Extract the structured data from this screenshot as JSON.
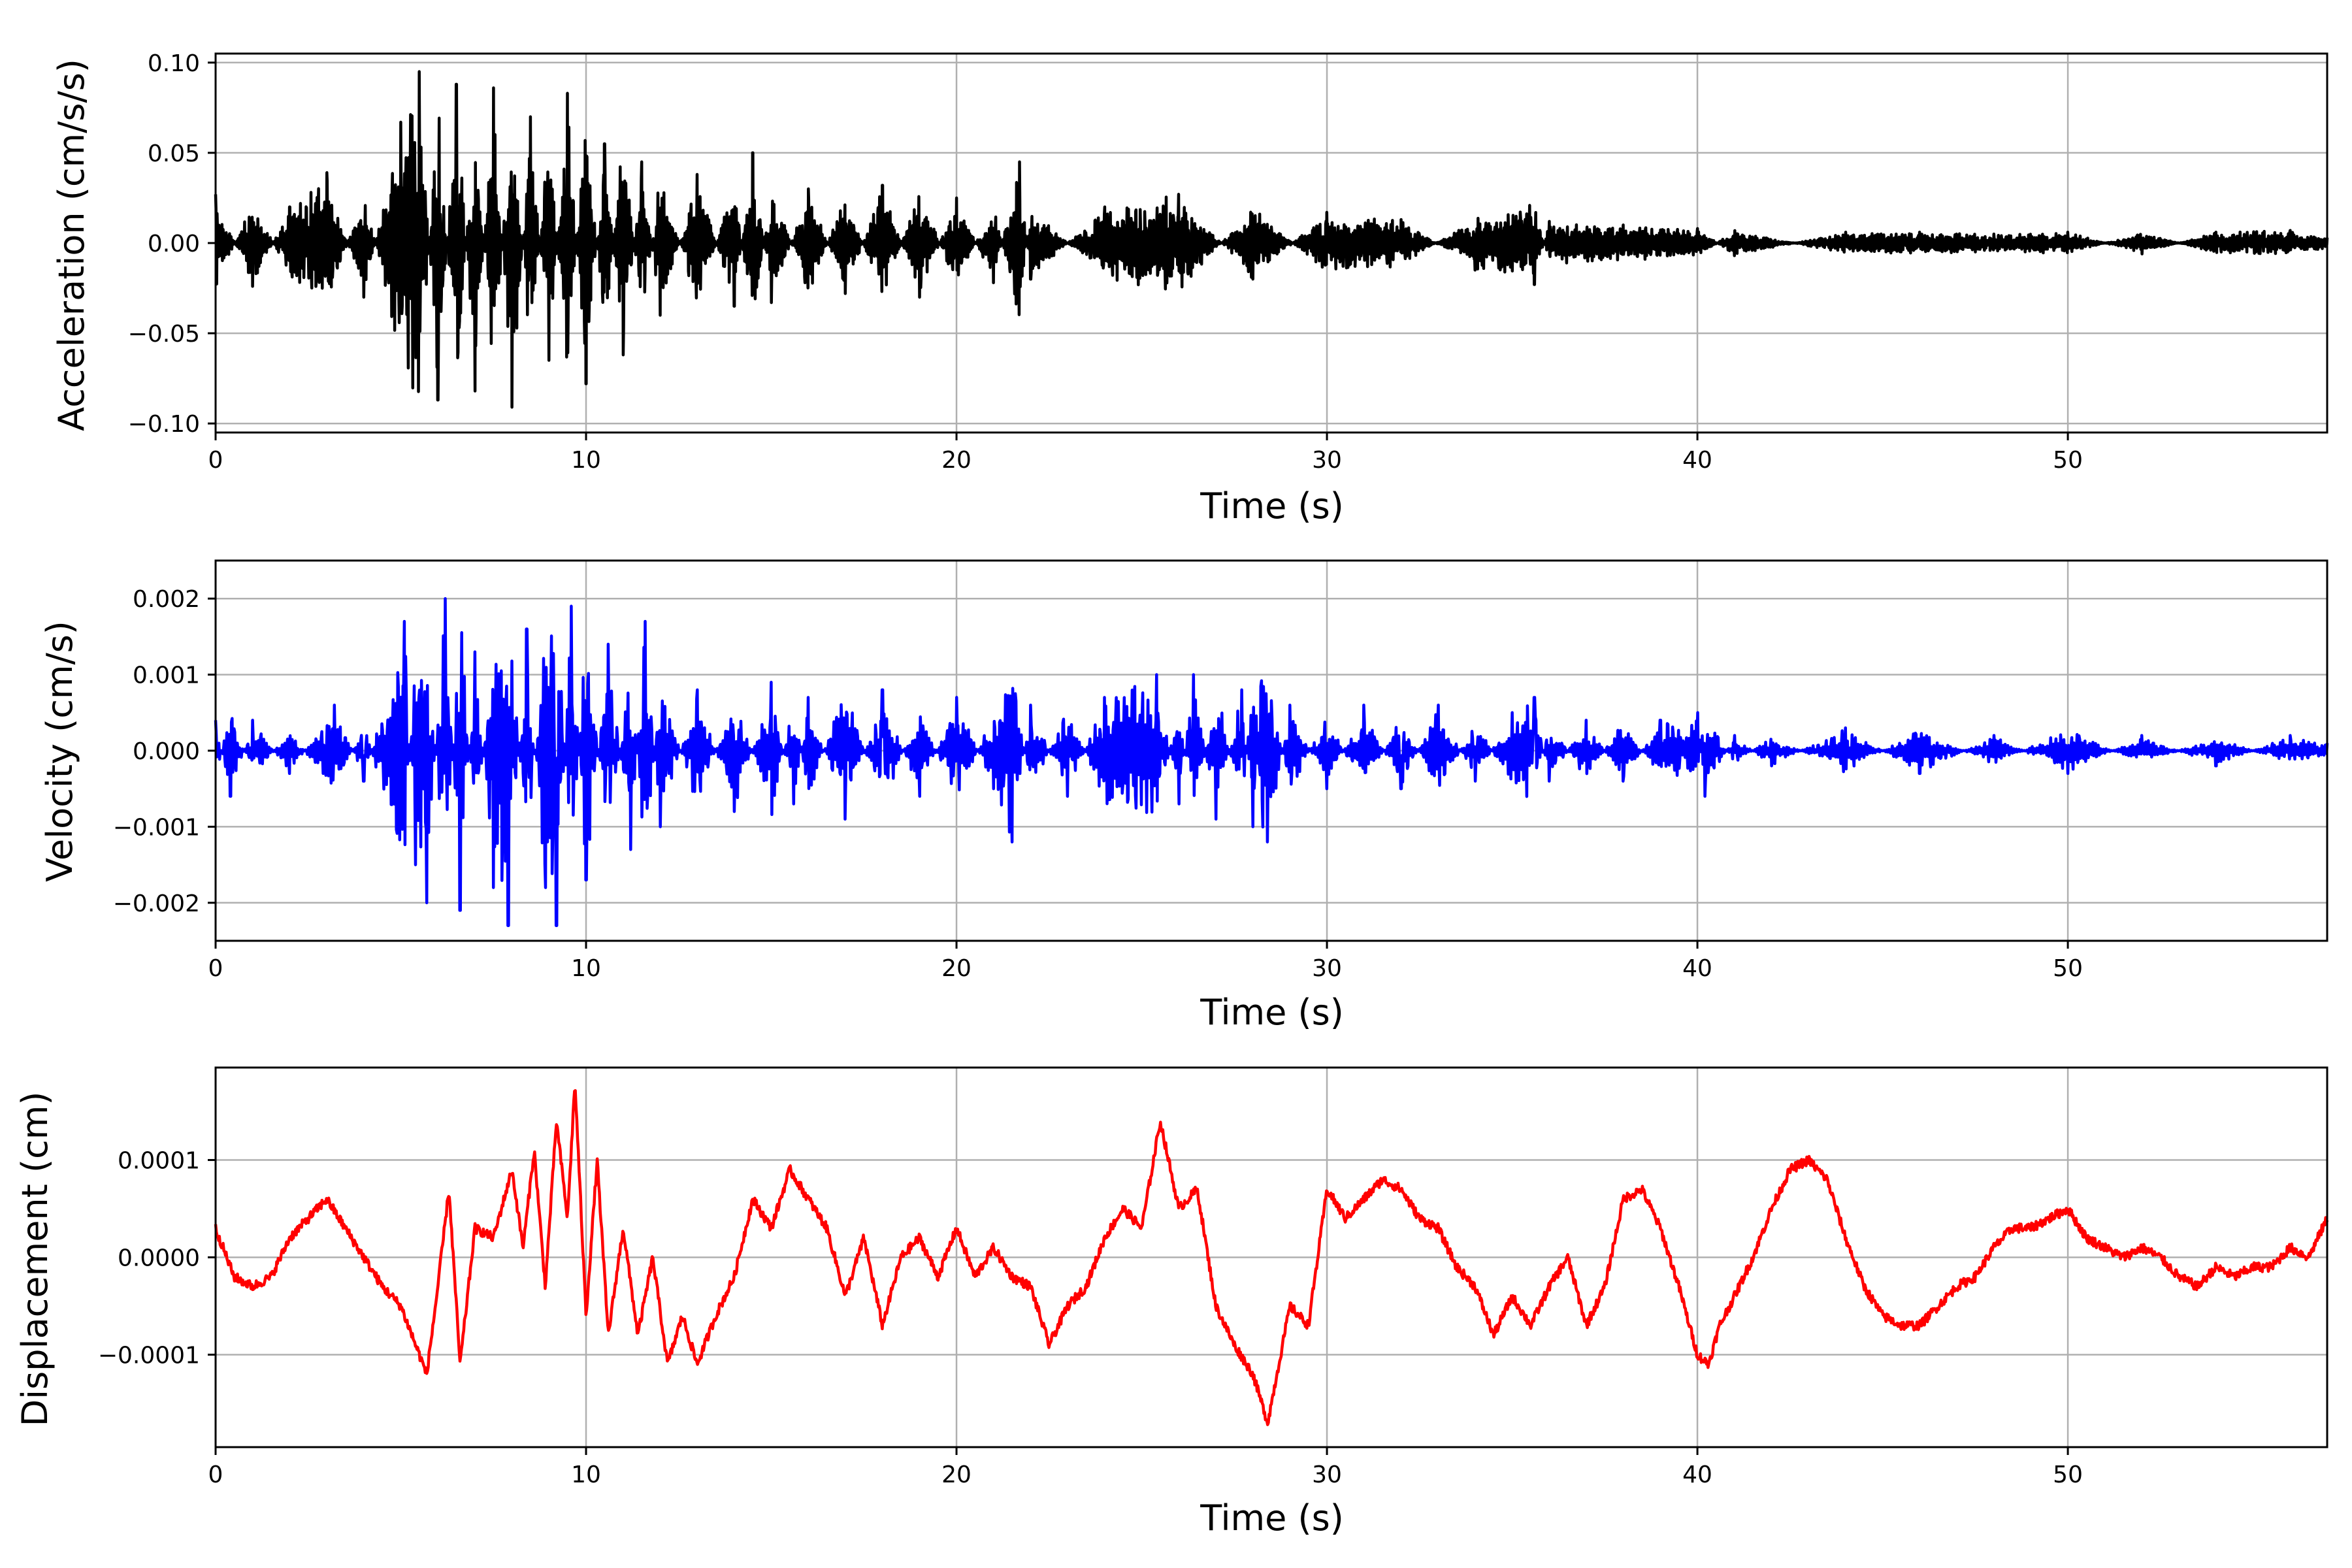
{
  "chart_data": [
    {
      "type": "line",
      "title": "",
      "xlabel": "Time (s)",
      "ylabel": "Acceleration (cm/s/s)",
      "xlim": [
        0,
        57
      ],
      "ylim": [
        -0.105,
        0.105
      ],
      "grid": true,
      "legend": "none",
      "color": "#000000",
      "x_ticks": [
        0,
        10,
        20,
        30,
        40,
        50
      ],
      "x_tick_labels": [
        "0",
        "10",
        "20",
        "30",
        "40",
        "50"
      ],
      "y_ticks": [
        -0.1,
        -0.05,
        0.0,
        0.05,
        0.1
      ],
      "y_tick_labels": [
        "−0.10",
        "−0.05",
        "0.00",
        "0.05",
        "0.10"
      ],
      "series": [
        {
          "x": [
            0,
            1,
            2,
            3,
            4,
            5,
            5.5,
            6,
            6.5,
            7,
            7.5,
            8,
            8.5,
            9,
            9.5,
            10,
            10.5,
            11,
            11.5,
            12,
            13,
            14,
            14.5,
            15,
            16,
            17,
            18,
            19,
            20,
            21,
            21.7,
            22,
            24,
            26,
            28,
            30,
            32,
            34,
            35.6,
            36,
            38,
            40,
            41,
            44,
            46,
            48,
            50,
            52,
            54,
            56,
            57
          ],
          "y": [
            0.027,
            -0.024,
            0.02,
            0.039,
            -0.03,
            0.067,
            0.095,
            -0.087,
            0.088,
            -0.082,
            0.086,
            -0.091,
            0.07,
            -0.065,
            0.083,
            -0.078,
            0.055,
            -0.062,
            0.045,
            -0.04,
            0.038,
            -0.035,
            0.05,
            -0.033,
            0.03,
            -0.028,
            0.032,
            -0.03,
            0.025,
            -0.022,
            0.045,
            -0.02,
            0.02,
            0.027,
            -0.02,
            0.017,
            0.013,
            -0.015,
            -0.023,
            0.012,
            0.01,
            0.008,
            -0.007,
            0.006,
            0.006,
            0.005,
            0.006,
            -0.006,
            0.006,
            0.007,
            0.003
          ]
        }
      ]
    },
    {
      "type": "line",
      "title": "",
      "xlabel": "Time (s)",
      "ylabel": "Velocity (cm/s)",
      "xlim": [
        0,
        57
      ],
      "ylim": [
        -0.0025,
        0.0025
      ],
      "grid": true,
      "legend": "none",
      "color": "#0000ff",
      "x_ticks": [
        0,
        10,
        20,
        30,
        40,
        50
      ],
      "x_tick_labels": [
        "0",
        "10",
        "20",
        "30",
        "40",
        "50"
      ],
      "y_ticks": [
        -0.002,
        -0.001,
        0.0,
        0.001,
        0.002
      ],
      "y_tick_labels": [
        "−0.002",
        "−0.001",
        "0.000",
        "0.001",
        "0.002"
      ],
      "series": [
        {
          "x": [
            0,
            0.4,
            1,
            2,
            3.2,
            4,
            5.1,
            5.4,
            5.7,
            6.2,
            6.6,
            7.0,
            7.5,
            7.9,
            8.4,
            8.9,
            9.2,
            9.6,
            10.0,
            10.6,
            11.2,
            11.6,
            12,
            13,
            14,
            15,
            15.6,
            16,
            17,
            18,
            19,
            20,
            21,
            21.5,
            22,
            23,
            24,
            25.4,
            26,
            26.4,
            27,
            27.7,
            28,
            28.4,
            29,
            30,
            31,
            32,
            33,
            34,
            35,
            35.6,
            36,
            37,
            38,
            39,
            40,
            40.2,
            41,
            42,
            44,
            46,
            48,
            50,
            52,
            54,
            56,
            57
          ],
          "y": [
            0.0004,
            -0.0006,
            0.0004,
            -0.0003,
            0.0006,
            -0.0004,
            0.0017,
            -0.0015,
            -0.002,
            0.002,
            -0.0021,
            0.0013,
            -0.0018,
            -0.0023,
            0.0016,
            -0.0018,
            -0.0023,
            0.0019,
            -0.0017,
            0.0014,
            -0.0013,
            0.0017,
            -0.001,
            0.0008,
            -0.0008,
            0.0009,
            -0.0007,
            0.0007,
            -0.0009,
            0.0008,
            -0.0006,
            0.0007,
            -0.0005,
            -0.0012,
            0.0006,
            -0.0006,
            0.0007,
            0.001,
            -0.0007,
            0.001,
            -0.0009,
            0.0008,
            -0.001,
            -0.0012,
            0.0006,
            -0.0005,
            0.0006,
            -0.0005,
            0.0006,
            -0.0004,
            0.0005,
            0.0007,
            -0.0004,
            0.0004,
            -0.0004,
            0.0004,
            0.0005,
            -0.0006,
            0.0002,
            -0.0002,
            0.0003,
            -0.0003,
            0.0002,
            -0.0003,
            0.0002,
            -0.0002,
            0.0002,
            0.0001
          ]
        }
      ]
    },
    {
      "type": "line",
      "title": "",
      "xlabel": "Time (s)",
      "ylabel": "Displacement (cm)",
      "xlim": [
        0,
        57
      ],
      "ylim": [
        -0.000195,
        0.000195
      ],
      "grid": true,
      "legend": "none",
      "color": "#ff0000",
      "x_ticks": [
        0,
        10,
        20,
        30,
        40,
        50
      ],
      "x_tick_labels": [
        "0",
        "10",
        "20",
        "30",
        "40",
        "50"
      ],
      "y_ticks": [
        -0.0001,
        0.0,
        0.0001
      ],
      "y_tick_labels": [
        "−0.0001",
        "0.0000",
        "0.0001"
      ],
      "series": [
        {
          "x": [
            0,
            0.5,
            1,
            1.5,
            2,
            2.5,
            3,
            3.5,
            4,
            4.5,
            5,
            5.3,
            5.7,
            6,
            6.3,
            6.6,
            7,
            7.5,
            8,
            8.3,
            8.6,
            8.9,
            9.2,
            9.5,
            9.7,
            10.0,
            10.3,
            10.6,
            11,
            11.4,
            11.8,
            12.2,
            12.6,
            13,
            13.5,
            14,
            14.5,
            15,
            15.5,
            16,
            16.5,
            17,
            17.5,
            18,
            18.5,
            19,
            19.5,
            20,
            20.5,
            21,
            21.5,
            22,
            22.5,
            23,
            23.5,
            24,
            24.5,
            25,
            25.5,
            26,
            26.5,
            27,
            27.5,
            28,
            28.4,
            28.7,
            29,
            29.5,
            30,
            30.5,
            31,
            31.5,
            32,
            32.5,
            33,
            33.5,
            34,
            34.5,
            35,
            35.5,
            36,
            36.5,
            37,
            37.5,
            38,
            38.5,
            39,
            39.5,
            40,
            40.3,
            40.6,
            41,
            41.5,
            42,
            42.5,
            43,
            43.5,
            44,
            44.5,
            45,
            45.5,
            46,
            46.5,
            47,
            47.5,
            48,
            48.5,
            49,
            49.5,
            50,
            50.5,
            51,
            51.5,
            52,
            52.5,
            53,
            53.5,
            54,
            54.5,
            55,
            55.5,
            56,
            56.5,
            57
          ],
          "y": [
            3e-05,
            -2e-05,
            -3e-05,
            -2e-05,
            2e-05,
            4e-05,
            6e-05,
            3e-05,
            0.0,
            -3e-05,
            -5e-05,
            -8e-05,
            -0.00012,
            -3e-05,
            7e-05,
            -0.00011,
            3e-05,
            2e-05,
            9e-05,
            1e-05,
            0.00011,
            -3e-05,
            0.00014,
            4e-05,
            0.00018,
            -6e-05,
            0.0001,
            -8e-05,
            3e-05,
            -8e-05,
            0.0,
            -0.00011,
            -6e-05,
            -0.00011,
            -6e-05,
            -2e-05,
            6e-05,
            3e-05,
            9e-05,
            6e-05,
            3e-05,
            -4e-05,
            2e-05,
            -7e-05,
            0.0,
            2e-05,
            -2e-05,
            3e-05,
            -2e-05,
            1e-05,
            -2e-05,
            -3e-05,
            -9e-05,
            -5e-05,
            -3e-05,
            2e-05,
            5e-05,
            3e-05,
            0.00014,
            5e-05,
            7e-05,
            -5e-05,
            -9e-05,
            -0.00012,
            -0.00017,
            -0.00011,
            -5e-05,
            -7e-05,
            7e-05,
            4e-05,
            6e-05,
            8e-05,
            7e-05,
            4e-05,
            3e-05,
            -1e-05,
            -3e-05,
            -8e-05,
            -4e-05,
            -7e-05,
            -3e-05,
            0.0,
            -7e-05,
            -3e-05,
            6e-05,
            7e-05,
            3e-05,
            -3e-05,
            -0.0001,
            -0.00011,
            -7e-05,
            -4e-05,
            0.0,
            5e-05,
            9e-05,
            0.0001,
            8e-05,
            2e-05,
            -3e-05,
            -6e-05,
            -7e-05,
            -7e-05,
            -5e-05,
            -3e-05,
            -2e-05,
            1e-05,
            3e-05,
            3e-05,
            4e-05,
            5e-05,
            2e-05,
            1e-05,
            0.0,
            1e-05,
            0.0,
            -2e-05,
            -3e-05,
            -1e-05,
            -2e-05,
            -1e-05,
            -1e-05,
            1e-05,
            0.0,
            4e-05
          ]
        }
      ]
    }
  ]
}
